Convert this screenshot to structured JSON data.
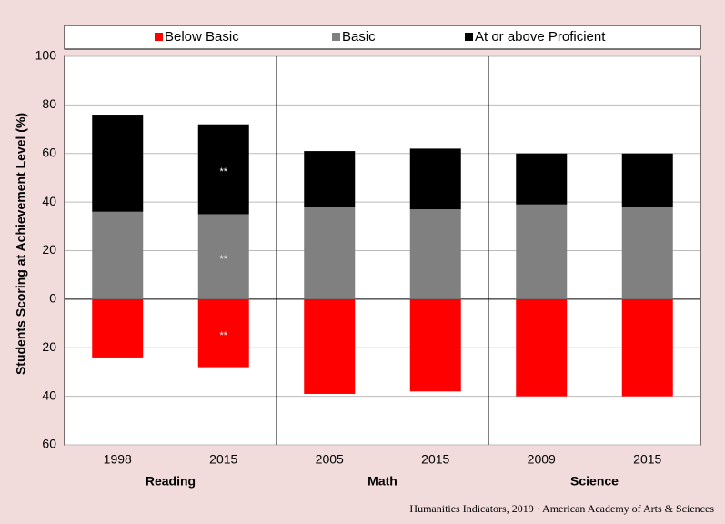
{
  "chart_data": {
    "type": "bar",
    "stacked": true,
    "ylabel": "Students Scoring at Achievement Level (%)",
    "source": "Humanities Indicators, 2019 · American Academy of Arts & Sciences",
    "categories": [
      "1998",
      "2015",
      "2005",
      "2015",
      "2009",
      "2015"
    ],
    "groups": [
      "Reading",
      "Math",
      "Science"
    ],
    "series": [
      {
        "name": "Below Basic",
        "color": "#ff0000",
        "values": [
          -24,
          -28,
          -39,
          -38,
          -40,
          -40
        ],
        "annotations": [
          null,
          "**",
          null,
          null,
          null,
          null
        ]
      },
      {
        "name": "Basic",
        "color": "#808080",
        "values": [
          36,
          35,
          38,
          37,
          39,
          38
        ],
        "annotations": [
          null,
          "**",
          null,
          null,
          null,
          null
        ]
      },
      {
        "name": "At or above Proficient",
        "color": "#000000",
        "values": [
          40,
          37,
          23,
          25,
          21,
          22
        ],
        "annotations": [
          null,
          "**",
          null,
          null,
          null,
          null
        ]
      }
    ],
    "ylim": [
      -60,
      100
    ],
    "yticks": [
      100,
      80,
      60,
      40,
      20,
      0,
      {
        "value": -20,
        "label": "20"
      },
      {
        "value": -40,
        "label": "40"
      },
      {
        "value": -60,
        "label": "60"
      }
    ],
    "grid": true,
    "legend": "top"
  }
}
